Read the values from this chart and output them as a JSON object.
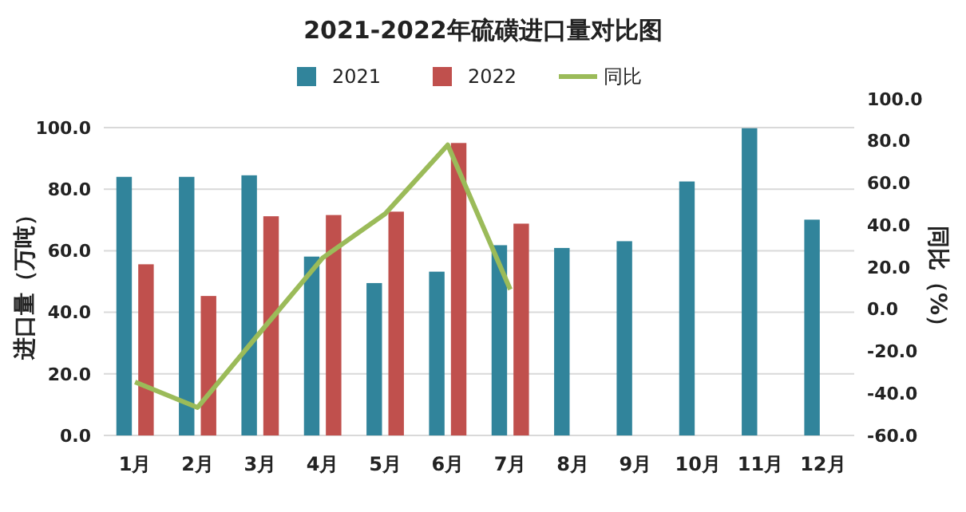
{
  "chart_data": {
    "type": "bar",
    "title": "2021-2022年硫磺进口量对比图",
    "ylabel": "进口量（万吨）",
    "y2label": "同比（%）",
    "categories": [
      "1月",
      "2月",
      "3月",
      "4月",
      "5月",
      "6月",
      "7月",
      "8月",
      "9月",
      "10月",
      "11月",
      "12月"
    ],
    "series": [
      {
        "name": "2021",
        "color": "#31849b",
        "values": [
          84.0,
          84.0,
          84.5,
          58.1,
          49.5,
          53.2,
          61.8,
          60.9,
          63.1,
          82.5,
          99.8,
          70.1
        ]
      },
      {
        "name": "2022",
        "color": "#c0504d",
        "values": [
          55.6,
          45.3,
          71.2,
          71.6,
          72.7,
          95.0,
          68.8,
          null,
          null,
          null,
          null,
          null
        ]
      },
      {
        "name": "同比",
        "type": "line",
        "axis": "y2",
        "color": "#9bbb59",
        "values": [
          -34.6,
          -46.7,
          -11,
          24.4,
          45.4,
          78.1,
          9.4,
          null,
          null,
          null,
          null,
          null
        ]
      }
    ],
    "ylim": [
      0,
      100
    ],
    "yticks": [
      {
        "value": 0,
        "label": "0.0"
      },
      {
        "value": 20,
        "label": "20.0"
      },
      {
        "value": 40,
        "label": "40.0"
      },
      {
        "value": 60,
        "label": "60.0"
      },
      {
        "value": 80,
        "label": "80.0"
      },
      {
        "value": 100,
        "label": "100.0"
      }
    ],
    "y2lim": [
      -60,
      100
    ],
    "y2ticks": [
      {
        "value": -60,
        "label": "-60.0"
      },
      {
        "value": -40,
        "label": "-40.0"
      },
      {
        "value": -20,
        "label": "-20.0"
      },
      {
        "value": 0,
        "label": "0.0"
      },
      {
        "value": 20,
        "label": "20.0"
      },
      {
        "value": 40,
        "label": "40.0"
      },
      {
        "value": 60,
        "label": "60.0"
      },
      {
        "value": 80,
        "label": "80.0"
      },
      {
        "value": 100,
        "label": "100.0"
      }
    ],
    "grid": "y",
    "legend": "top",
    "marker": "none"
  }
}
